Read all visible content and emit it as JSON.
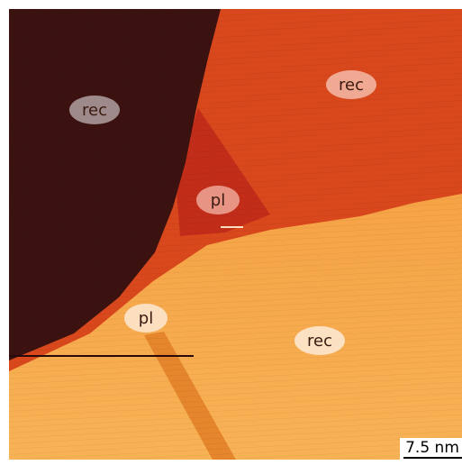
{
  "image": {
    "labels": [
      "rec",
      "rec",
      "pl",
      "pl",
      "rec"
    ],
    "scale_bar": "7.5 nm"
  }
}
